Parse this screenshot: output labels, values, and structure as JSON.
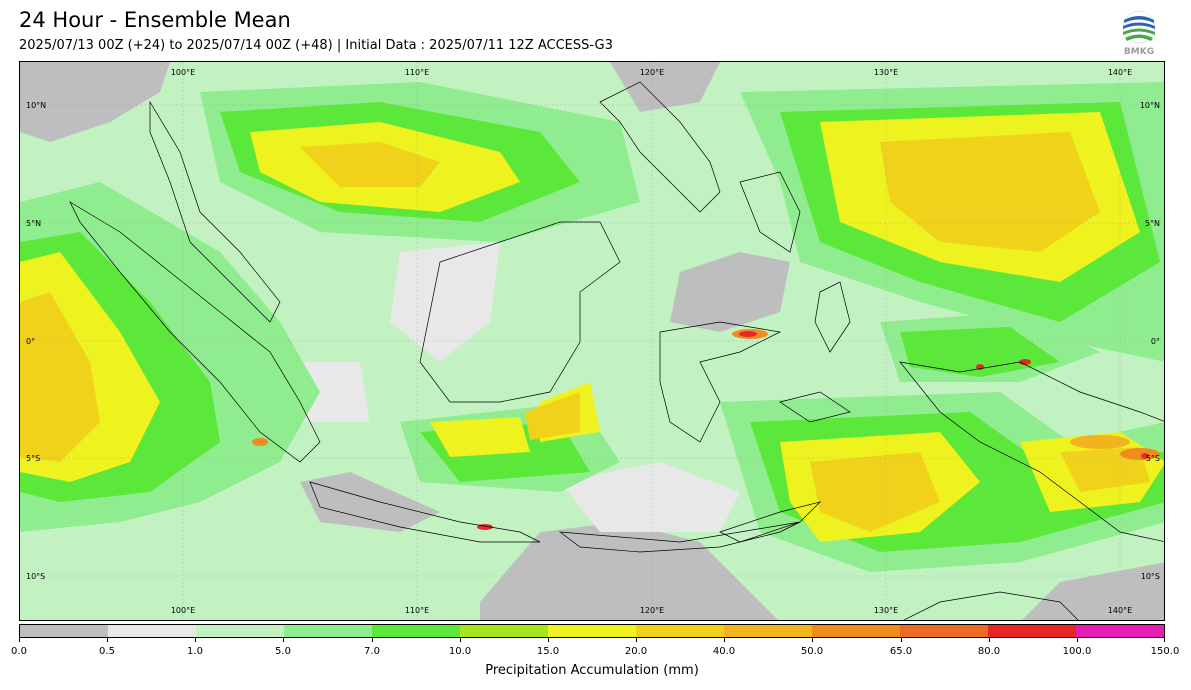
{
  "header": {
    "title": "24 Hour - Ensemble Mean",
    "subtitle": "2025/07/13 00Z (+24) to 2025/07/14 00Z (+48) | Initial Data : 2025/07/11 12Z ACCESS-G3",
    "logo_text": "BMKG"
  },
  "map": {
    "lon_labels_top": [
      "100°E",
      "110°E",
      "120°E",
      "130°E",
      "140°E"
    ],
    "lon_labels_bottom": [
      "100°E",
      "110°E",
      "120°E",
      "130°E",
      "140°E"
    ],
    "lat_labels_left": [
      "10°N",
      "5°N",
      "0°",
      "5°S",
      "10°S"
    ],
    "lat_labels_right": [
      "10°N",
      "5°N",
      "0°",
      "5°S",
      "10°S"
    ]
  },
  "colorbar": {
    "title": "Precipitation Accumulation (mm)",
    "ticks": [
      "0.0",
      "0.5",
      "1.0",
      "5.0",
      "7.0",
      "10.0",
      "15.0",
      "20.0",
      "40.0",
      "50.0",
      "65.0",
      "80.0",
      "100.0",
      "150.0"
    ],
    "colors": [
      "#bebebe",
      "#e8e8e8",
      "#c2f2c2",
      "#8fec8f",
      "#5ce83a",
      "#a6e61c",
      "#eef21e",
      "#f0d21a",
      "#f0b41e",
      "#f08c1e",
      "#ec6a28",
      "#e82828",
      "#e61cb4"
    ]
  }
}
